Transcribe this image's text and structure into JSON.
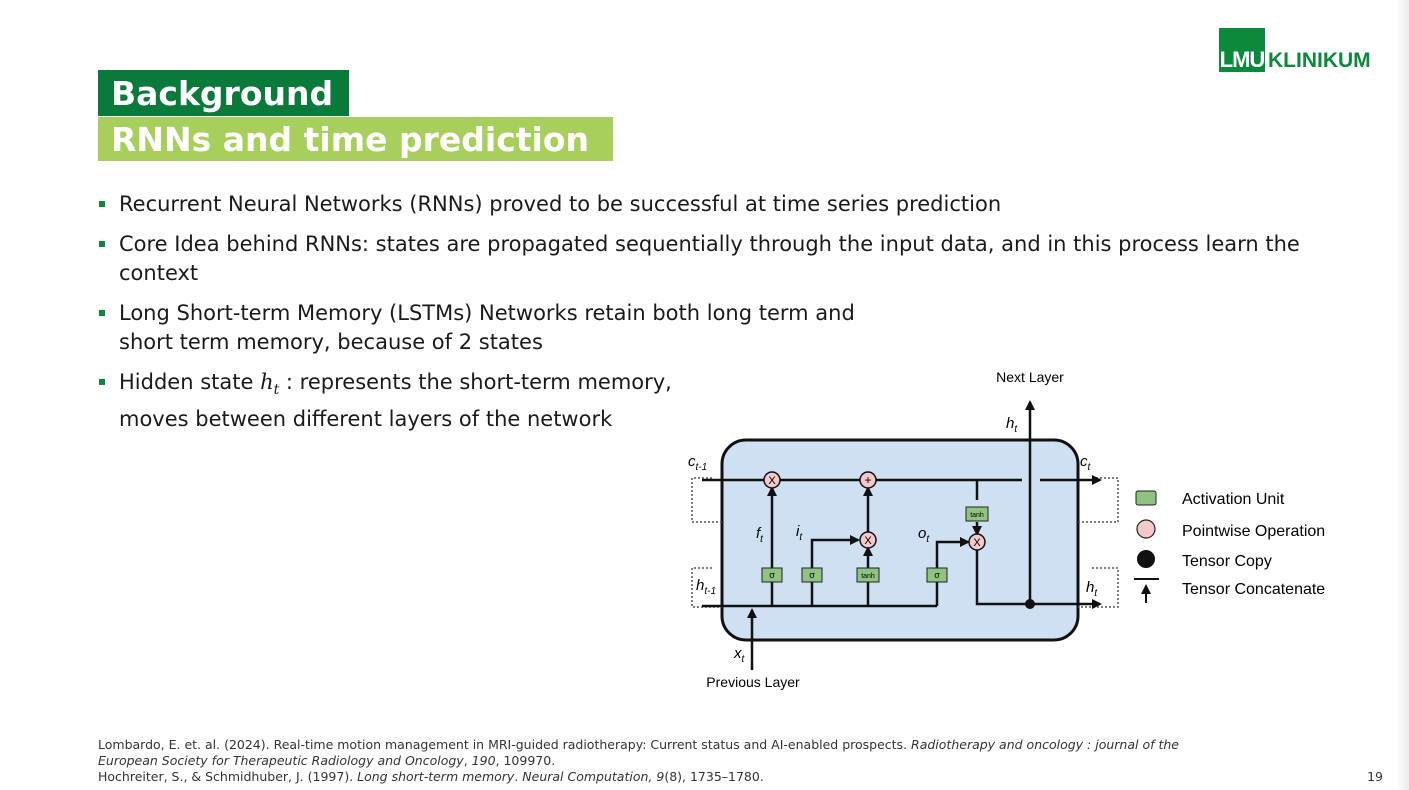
{
  "logo": {
    "box": "LMU",
    "text": "KLINIKUM"
  },
  "title": {
    "line1": "Background",
    "line2": "RNNs and time prediction"
  },
  "bullets": {
    "b1": "Recurrent Neural Networks (RNNs) proved to be successful at time series prediction",
    "b2": "Core Idea behind RNNs: states are propagated sequentially through the input data, and in this process learn the context",
    "b3": "Long Short-term Memory (LSTMs) Networks retain both long term and short term memory, because of 2 states",
    "b4_pre": "Hidden state ",
    "b4_var": "h",
    "b4_sub": "t",
    "b4_post": " : represents the short-term memory, moves between different layers of the network"
  },
  "diagram": {
    "next_layer": "Next Layer",
    "previous_layer": "Previous Layer",
    "h_top": "h",
    "h_top_sub": "t",
    "c_in": "c",
    "c_in_sub": "t-1",
    "c_out": "c",
    "c_out_sub": "t",
    "h_in": "h",
    "h_in_sub": "t-1",
    "h_out": "h",
    "h_out_sub": "t",
    "x_in": "x",
    "x_in_sub": "t",
    "f_gate": "f",
    "f_sub": "t",
    "i_gate": "i",
    "i_sub": "t",
    "o_gate": "o",
    "o_sub": "t",
    "sigma": "σ",
    "tanh": "tanh",
    "op_x": "X",
    "op_plus": "+",
    "legend": {
      "activation": "Activation Unit",
      "pointwise": "Pointwise Operation",
      "copy": "Tensor Copy",
      "concat": "Tensor Concatenate"
    },
    "colors": {
      "cell_fill": "#cfe0f3",
      "unit_fill": "#8fc480",
      "op_fill": "#f3c9c9"
    }
  },
  "references": {
    "r1_plain": "Lombardo, E. et. al. (2024). Real-time motion management in MRI-guided radiotherapy: Current status and AI-enabled prospects. ",
    "r1_ital": "Radiotherapy and oncology : journal of the European Society for Therapeutic Radiology and Oncology",
    "r1_sep": ", ",
    "r1_vol": "190",
    "r1_end": ", 109970.",
    "r2_plain": "Hochreiter, S., & Schmidhuber, J. (1997). ",
    "r2_ital": "Long short-term memory",
    "r2_mid": ". ",
    "r2_journal": "Neural Computation, 9",
    "r2_end": "(8), 1735–1780."
  },
  "page_number": "19"
}
